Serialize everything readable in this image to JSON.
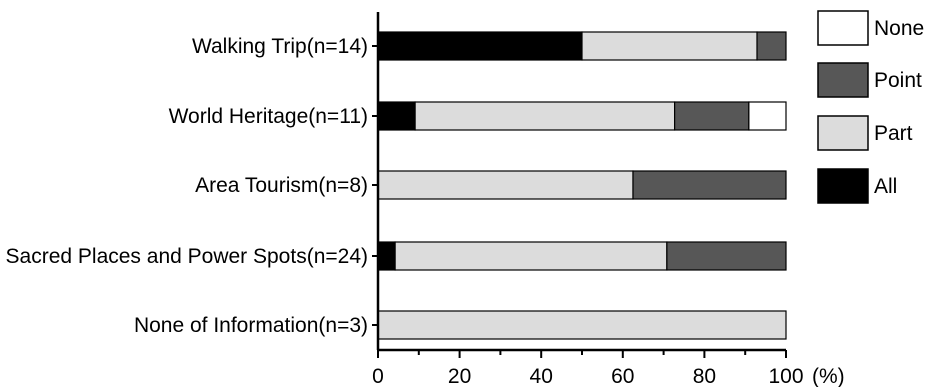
{
  "chart_data": {
    "type": "bar",
    "orientation": "horizontal",
    "stacked": true,
    "title": "",
    "xlabel": "(%)",
    "ylabel": "",
    "xlim": [
      0,
      100
    ],
    "x_ticks": [
      "0",
      "20",
      "40",
      "60",
      "80",
      "100"
    ],
    "grid": false,
    "legend_position": "right",
    "categories": [
      "Walking Trip(n=14)",
      "World Heritage(n=11)",
      "Area Tourism(n=8)",
      "Sacred Places and Power Spots(n=24)",
      "None of Information(n=3)"
    ],
    "series": [
      {
        "name": "All",
        "color": "#000000",
        "values": [
          50.0,
          9.1,
          0.0,
          4.2,
          0.0
        ]
      },
      {
        "name": "Part",
        "color": "#dcdcdc",
        "values": [
          42.9,
          63.6,
          62.5,
          66.6,
          100.0
        ]
      },
      {
        "name": "Point",
        "color": "#575757",
        "values": [
          7.1,
          18.2,
          37.5,
          29.2,
          0.0
        ]
      },
      {
        "name": "None",
        "color": "#ffffff",
        "values": [
          0.0,
          9.1,
          0.0,
          0.0,
          0.0
        ]
      }
    ],
    "legend_order": [
      "None",
      "Point",
      "Part",
      "All"
    ]
  }
}
